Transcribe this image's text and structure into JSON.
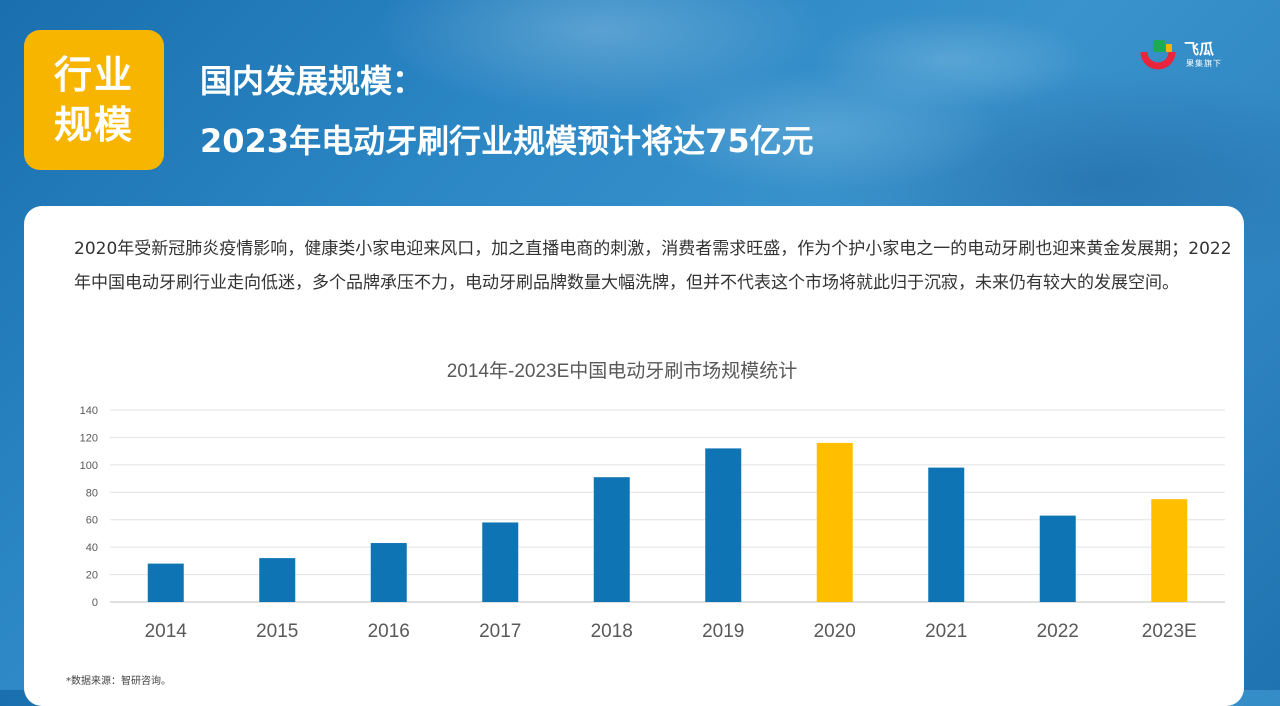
{
  "header": {
    "badge_line1": "行业",
    "badge_line2": "规模",
    "title_line1": "国内发展规模：",
    "title_line2": "2023年电动牙刷行业规模预计将达75亿元"
  },
  "logo": {
    "name": "飞瓜",
    "tagline": "果集旗下"
  },
  "description": "2020年受新冠肺炎疫情影响，健康类小家电迎来风口，加之直播电商的刺激，消费者需求旺盛，作为个护小家电之一的电动牙刷也迎来黄金发展期；2022年中国电动牙刷行业走向低迷，多个品牌承压不力，电动牙刷品牌数量大幅洗牌，但并不代表这个市场将就此归于沉寂，未来仍有较大的发展空间。",
  "footer": {
    "source": "*数据来源：智研咨询。"
  },
  "colors": {
    "bar_default": "#0f74b3",
    "bar_highlight": "#ffbf00",
    "badge": "#f7b500"
  },
  "chart_data": {
    "type": "bar",
    "title": "2014年-2023E中国电动牙刷市场规模统计",
    "categories": [
      "2014",
      "2015",
      "2016",
      "2017",
      "2018",
      "2019",
      "2020",
      "2021",
      "2022",
      "2023E"
    ],
    "values": [
      28,
      32,
      43,
      58,
      91,
      112,
      116,
      98,
      63,
      75
    ],
    "highlighted": [
      "2020",
      "2023E"
    ],
    "xlabel": "",
    "ylabel": "",
    "ylim": [
      0,
      140
    ],
    "yticks": [
      0,
      20,
      40,
      60,
      80,
      100,
      120,
      140
    ],
    "grid": true,
    "legend": "none"
  }
}
